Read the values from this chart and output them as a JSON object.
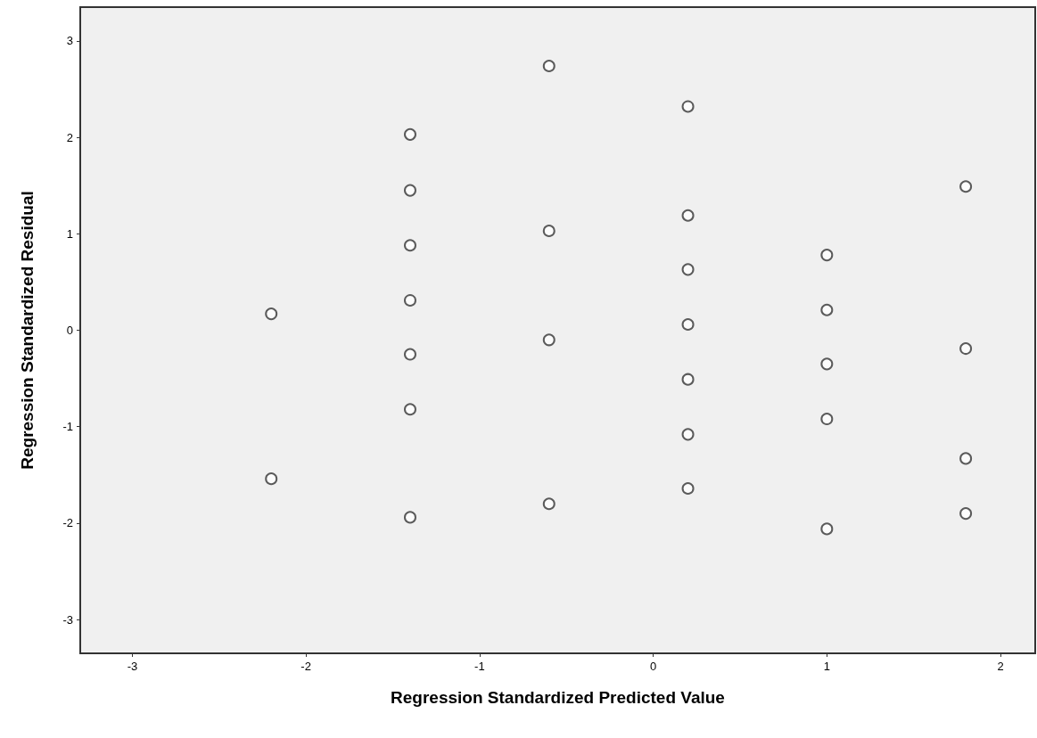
{
  "chart_data": {
    "type": "scatter",
    "xlabel": "Regression Standardized Predicted Value",
    "ylabel": "Regression Standardized Residual",
    "x": [
      -2.2,
      -2.2,
      -1.4,
      -1.4,
      -1.4,
      -1.4,
      -1.4,
      -1.4,
      -1.4,
      -0.6,
      -0.6,
      -0.6,
      -0.6,
      0.2,
      0.2,
      0.2,
      0.2,
      0.2,
      0.2,
      0.2,
      1.0,
      1.0,
      1.0,
      1.0,
      1.0,
      1.8,
      1.8,
      1.8,
      1.8
    ],
    "values": [
      0.17,
      -1.54,
      2.03,
      1.45,
      0.88,
      0.31,
      -0.25,
      -0.82,
      -1.94,
      2.74,
      1.03,
      -0.1,
      -1.8,
      2.32,
      1.19,
      0.63,
      0.06,
      -0.51,
      -1.08,
      -1.64,
      0.78,
      0.21,
      -0.35,
      -0.92,
      -2.06,
      1.49,
      -0.19,
      -1.33,
      -1.9
    ],
    "color": "#333333",
    "marker": "circle",
    "grid": false,
    "xlim": [
      -3.3,
      2.2
    ],
    "xticks": [
      -3,
      -2,
      -1,
      0,
      1,
      2
    ],
    "ylim": [
      -3.35,
      3.35
    ],
    "yticks": [
      -3,
      -2,
      -1,
      0,
      1,
      2,
      3
    ]
  }
}
